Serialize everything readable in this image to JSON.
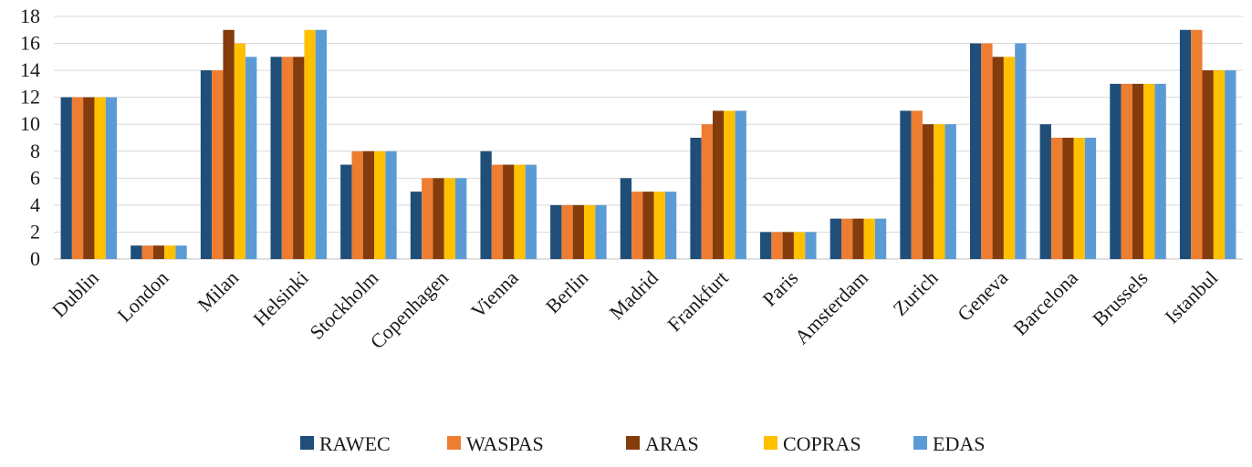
{
  "chart_data": {
    "type": "bar",
    "title": "",
    "xlabel": "",
    "ylabel": "",
    "ylim": [
      0,
      18
    ],
    "yticks": [
      0,
      2,
      4,
      6,
      8,
      10,
      12,
      14,
      16,
      18
    ],
    "grid": true,
    "legend_position": "bottom",
    "categories": [
      "Dublin",
      "London",
      "Milan",
      "Helsinki",
      "Stockholm",
      "Copenhagen",
      "Vienna",
      "Berlin",
      "Madrid",
      "Frankfurt",
      "Paris",
      "Amsterdam",
      "Zurich",
      "Geneva",
      "Barcelona",
      "Brussels",
      "Istanbul"
    ],
    "series": [
      {
        "name": "RAWEC",
        "color": "#1f4e79",
        "values": [
          12,
          1,
          14,
          15,
          7,
          5,
          8,
          4,
          6,
          9,
          2,
          3,
          11,
          16,
          10,
          13,
          17
        ]
      },
      {
        "name": "WASPAS",
        "color": "#ed7d31",
        "values": [
          12,
          1,
          14,
          15,
          8,
          6,
          7,
          4,
          5,
          10,
          2,
          3,
          11,
          16,
          9,
          13,
          17
        ]
      },
      {
        "name": "ARAS",
        "color": "#843c0c",
        "values": [
          12,
          1,
          17,
          15,
          8,
          6,
          7,
          4,
          5,
          11,
          2,
          3,
          10,
          15,
          9,
          13,
          14
        ]
      },
      {
        "name": "COPRAS",
        "color": "#ffc000",
        "values": [
          12,
          1,
          16,
          17,
          8,
          6,
          7,
          4,
          5,
          11,
          2,
          3,
          10,
          15,
          9,
          13,
          14
        ]
      },
      {
        "name": "EDAS",
        "color": "#5b9bd5",
        "values": [
          12,
          1,
          15,
          17,
          8,
          6,
          7,
          4,
          5,
          11,
          2,
          3,
          10,
          16,
          9,
          13,
          14
        ]
      }
    ]
  }
}
